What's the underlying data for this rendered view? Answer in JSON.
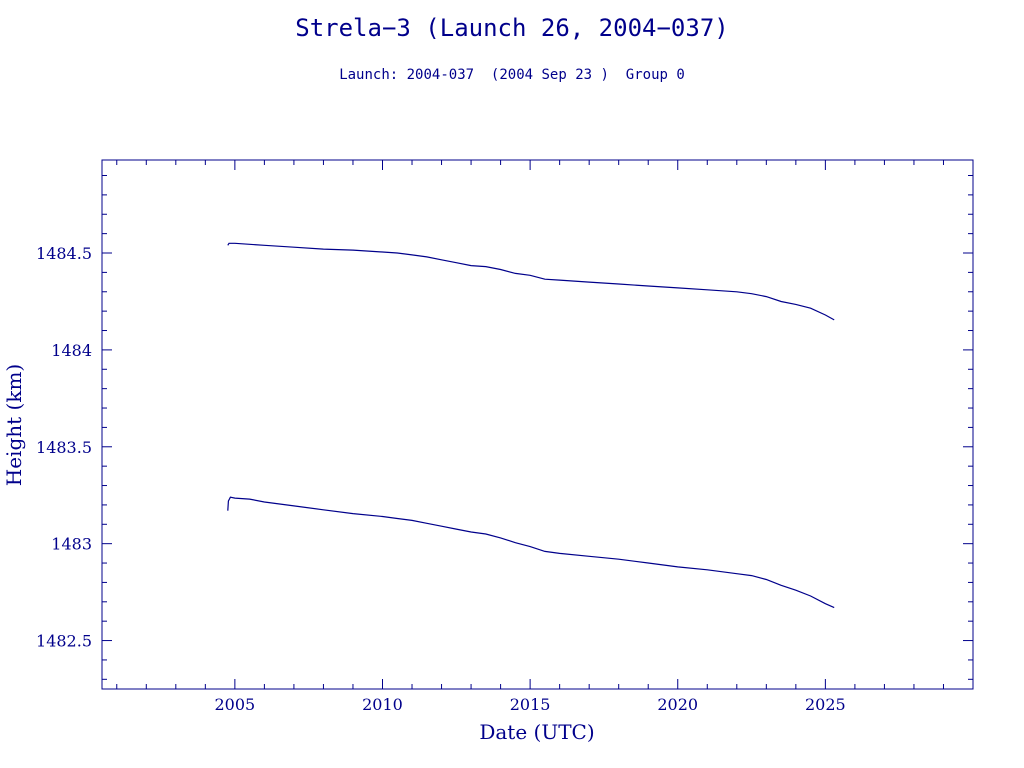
{
  "chart_data": {
    "type": "line",
    "title": "Strela−3 (Launch 26, 2004−037)",
    "subtitle": "Launch: 2004-037  (2004 Sep 23 )  Group 0",
    "xlabel": "Date (UTC)",
    "ylabel": "Height (km)",
    "xlim": [
      2000.5,
      2030.0
    ],
    "ylim": [
      1482.25,
      1484.98
    ],
    "x_ticks": [
      2005,
      2010,
      2015,
      2020,
      2025
    ],
    "x_tick_labels": [
      "2005",
      "2010",
      "2015",
      "2020",
      "2025"
    ],
    "y_ticks": [
      1482.5,
      1483,
      1483.5,
      1484,
      1484.5
    ],
    "y_tick_labels": [
      "1482.5",
      "1483",
      "1483.5",
      "1484",
      "1484.5"
    ],
    "grid": false,
    "legend": "none",
    "colors": {
      "axes": "#00008b",
      "line": "#00008b",
      "background": "#ffffff"
    },
    "series": [
      {
        "x": [
          2004.76,
          2004.8,
          2005.0,
          2005.5,
          2006.0,
          2007.0,
          2008.0,
          2009.0,
          2010.0,
          2010.5,
          2011.0,
          2011.5,
          2012.0,
          2012.5,
          2013.0,
          2013.5,
          2014.0,
          2014.5,
          2015.0,
          2015.5,
          2016.0,
          2016.5,
          2017.0,
          2018.0,
          2019.0,
          2020.0,
          2021.0,
          2021.5,
          2022.0,
          2022.5,
          2023.0,
          2023.5,
          2024.0,
          2024.5,
          2025.0,
          2025.3
        ],
        "y": [
          1484.54,
          1484.55,
          1484.55,
          1484.545,
          1484.54,
          1484.53,
          1484.52,
          1484.515,
          1484.505,
          1484.5,
          1484.49,
          1484.48,
          1484.465,
          1484.45,
          1484.435,
          1484.43,
          1484.415,
          1484.395,
          1484.385,
          1484.365,
          1484.36,
          1484.355,
          1484.35,
          1484.34,
          1484.33,
          1484.32,
          1484.31,
          1484.305,
          1484.3,
          1484.29,
          1484.275,
          1484.25,
          1484.235,
          1484.215,
          1484.18,
          1484.155
        ]
      },
      {
        "x": [
          2004.76,
          2004.78,
          2004.85,
          2005.0,
          2005.5,
          2006.0,
          2007.0,
          2008.0,
          2009.0,
          2010.0,
          2010.5,
          2011.0,
          2011.5,
          2012.0,
          2012.5,
          2013.0,
          2013.5,
          2014.0,
          2014.5,
          2015.0,
          2015.5,
          2016.0,
          2017.0,
          2018.0,
          2019.0,
          2020.0,
          2021.0,
          2022.0,
          2022.5,
          2023.0,
          2023.5,
          2024.0,
          2024.5,
          2025.0,
          2025.3
        ],
        "y": [
          1483.17,
          1483.22,
          1483.24,
          1483.235,
          1483.23,
          1483.215,
          1483.195,
          1483.175,
          1483.155,
          1483.14,
          1483.13,
          1483.12,
          1483.105,
          1483.09,
          1483.075,
          1483.06,
          1483.05,
          1483.03,
          1483.005,
          1482.985,
          1482.96,
          1482.95,
          1482.935,
          1482.92,
          1482.9,
          1482.88,
          1482.865,
          1482.845,
          1482.835,
          1482.815,
          1482.785,
          1482.76,
          1482.73,
          1482.69,
          1482.67
        ]
      }
    ]
  }
}
